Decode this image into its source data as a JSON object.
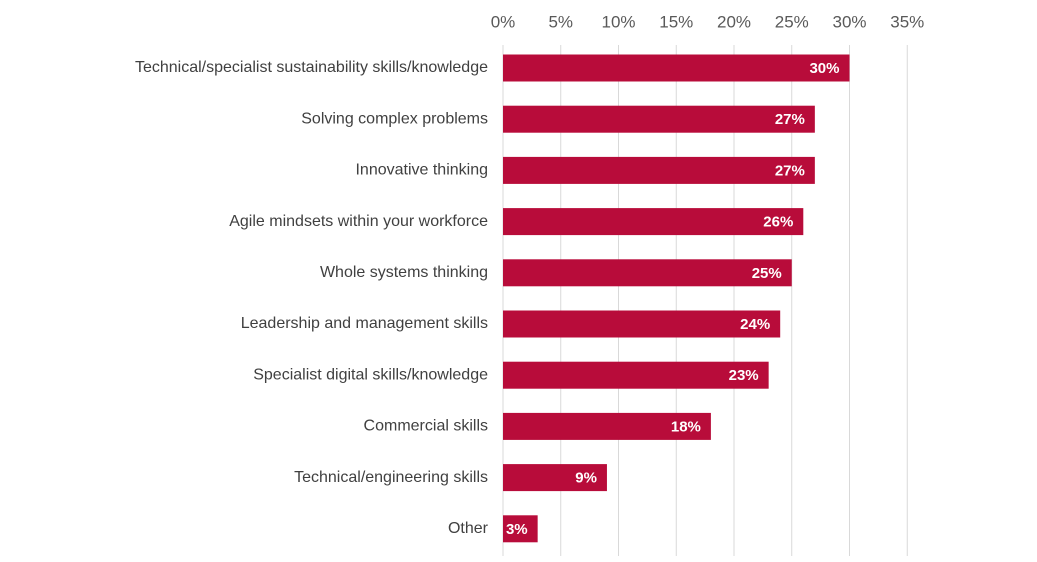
{
  "chart_data": {
    "type": "bar",
    "orientation": "horizontal",
    "categories": [
      "Technical/specialist sustainability skills/knowledge",
      "Solving complex problems",
      "Innovative thinking",
      "Agile mindsets within your workforce",
      "Whole systems thinking",
      "Leadership and management skills",
      "Specialist digital skills/knowledge",
      "Commercial skills",
      "Technical/engineering skills",
      "Other"
    ],
    "values": [
      30,
      27,
      27,
      26,
      25,
      24,
      23,
      18,
      9,
      3
    ],
    "data_labels": [
      "30%",
      "27%",
      "27%",
      "26%",
      "25%",
      "24%",
      "23%",
      "18%",
      "9%",
      "3%"
    ],
    "title": "",
    "xlabel": "",
    "ylabel": "",
    "xlim": [
      0,
      35
    ],
    "x_ticks": [
      0,
      5,
      10,
      15,
      20,
      25,
      30,
      35
    ],
    "x_tick_labels": [
      "0%",
      "5%",
      "10%",
      "15%",
      "20%",
      "25%",
      "30%",
      "35%"
    ],
    "x_axis_position": "top",
    "grid": true,
    "legend": false,
    "bar_color": "#B80C3A",
    "grid_color": "#D9D9D9"
  }
}
